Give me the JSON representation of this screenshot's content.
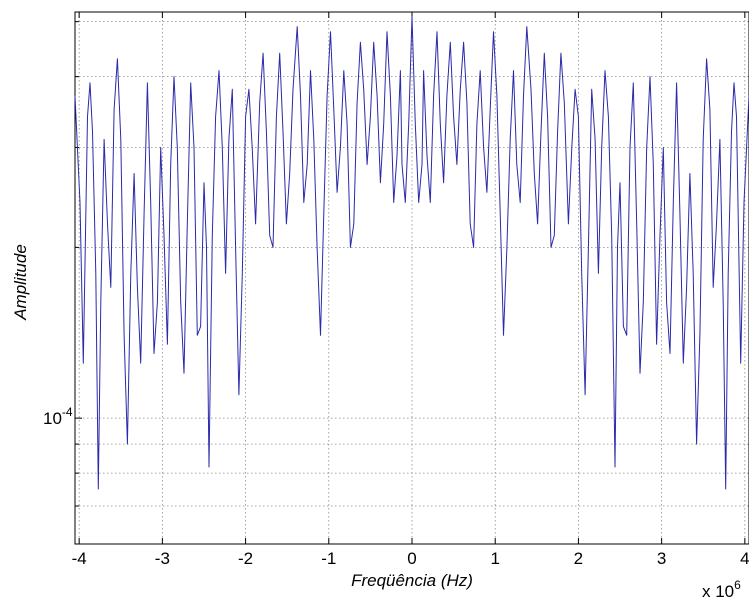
{
  "chart_data": {
    "type": "line",
    "title": "",
    "xlabel": "Freqüência (Hz)",
    "ylabel": "Amplitude",
    "x_exponent_base": "x 10",
    "x_exponent_power": "6",
    "xlim": [
      -4.05,
      4.05
    ],
    "x_ticks": [
      -4,
      -3,
      -2,
      -1,
      0,
      1,
      2,
      3,
      4
    ],
    "x_tick_labels": [
      "-4",
      "-3",
      "-2",
      "-1",
      "0",
      "1",
      "2",
      "3",
      "4"
    ],
    "y_scale": "log",
    "ylim": [
      6e-05,
      0.00052
    ],
    "y_tick_labels": [
      {
        "value": 0.0001,
        "base": "10",
        "power": "-4"
      }
    ],
    "grid": true,
    "line_color": "#2a2aaa",
    "series": [
      {
        "values": [
          [
            -4.05,
            0.00037
          ],
          [
            -3.99,
            0.00024
          ],
          [
            -3.95,
            0.000125
          ],
          [
            -3.9,
            0.00034
          ],
          [
            -3.87,
            0.00039
          ],
          [
            -3.84,
            0.00032
          ],
          [
            -3.8,
            0.00018
          ],
          [
            -3.77,
            7.5e-05
          ],
          [
            -3.74,
            0.00016
          ],
          [
            -3.7,
            0.00031
          ],
          [
            -3.66,
            0.00022
          ],
          [
            -3.62,
            0.00017
          ],
          [
            -3.58,
            0.00035
          ],
          [
            -3.54,
            0.00043
          ],
          [
            -3.5,
            0.00031
          ],
          [
            -3.46,
            0.00014
          ],
          [
            -3.42,
            9e-05
          ],
          [
            -3.38,
            0.00018
          ],
          [
            -3.34,
            0.00027
          ],
          [
            -3.3,
            0.00017
          ],
          [
            -3.26,
            0.000125
          ],
          [
            -3.22,
            0.00023
          ],
          [
            -3.18,
            0.00039
          ],
          [
            -3.14,
            0.00024
          ],
          [
            -3.1,
            0.00013
          ],
          [
            -3.06,
            0.00016
          ],
          [
            -3.02,
            0.0003
          ],
          [
            -2.98,
            0.00021
          ],
          [
            -2.94,
            0.000135
          ],
          [
            -2.9,
            0.00028
          ],
          [
            -2.86,
            0.0004
          ],
          [
            -2.82,
            0.0003
          ],
          [
            -2.78,
            0.00016
          ],
          [
            -2.74,
            0.00012
          ],
          [
            -2.7,
            0.00022
          ],
          [
            -2.66,
            0.00039
          ],
          [
            -2.62,
            0.0003
          ],
          [
            -2.58,
            0.00014
          ],
          [
            -2.54,
            0.000145
          ],
          [
            -2.5,
            0.00026
          ],
          [
            -2.47,
            0.0002
          ],
          [
            -2.44,
            8.2e-05
          ],
          [
            -2.4,
            0.00021
          ],
          [
            -2.36,
            0.00034
          ],
          [
            -2.32,
            0.00041
          ],
          [
            -2.28,
            0.0003
          ],
          [
            -2.24,
            0.00018
          ],
          [
            -2.2,
            0.00031
          ],
          [
            -2.16,
            0.00038
          ],
          [
            -2.12,
            0.0002
          ],
          [
            -2.08,
            0.00011
          ],
          [
            -2.04,
            0.00018
          ],
          [
            -2.0,
            0.00034
          ],
          [
            -1.96,
            0.00038
          ],
          [
            -1.92,
            0.0003
          ],
          [
            -1.88,
            0.00022
          ],
          [
            -1.83,
            0.00036
          ],
          [
            -1.79,
            0.00044
          ],
          [
            -1.75,
            0.00032
          ],
          [
            -1.71,
            0.00021
          ],
          [
            -1.67,
            0.0002
          ],
          [
            -1.63,
            0.00034
          ],
          [
            -1.59,
            0.00044
          ],
          [
            -1.55,
            0.00032
          ],
          [
            -1.51,
            0.00022
          ],
          [
            -1.47,
            0.00027
          ],
          [
            -1.43,
            0.00038
          ],
          [
            -1.38,
            0.00049
          ],
          [
            -1.34,
            0.00037
          ],
          [
            -1.3,
            0.00024
          ],
          [
            -1.26,
            0.00028
          ],
          [
            -1.22,
            0.00041
          ],
          [
            -1.18,
            0.00031
          ],
          [
            -1.14,
            0.0002
          ],
          [
            -1.1,
            0.00014
          ],
          [
            -1.06,
            0.00023
          ],
          [
            -1.02,
            0.00037
          ],
          [
            -0.98,
            0.00048
          ],
          [
            -0.94,
            0.00035
          ],
          [
            -0.9,
            0.00025
          ],
          [
            -0.86,
            0.0003
          ],
          [
            -0.82,
            0.00041
          ],
          [
            -0.78,
            0.00033
          ],
          [
            -0.74,
            0.0002
          ],
          [
            -0.7,
            0.00022
          ],
          [
            -0.66,
            0.00036
          ],
          [
            -0.62,
            0.00046
          ],
          [
            -0.58,
            0.00038
          ],
          [
            -0.54,
            0.00028
          ],
          [
            -0.5,
            0.00034
          ],
          [
            -0.46,
            0.00046
          ],
          [
            -0.42,
            0.00037
          ],
          [
            -0.38,
            0.00026
          ],
          [
            -0.34,
            0.00033
          ],
          [
            -0.3,
            0.00048
          ],
          [
            -0.26,
            0.00037
          ],
          [
            -0.22,
            0.00024
          ],
          [
            -0.18,
            0.00029
          ],
          [
            -0.14,
            0.00041
          ],
          [
            -0.12,
            0.00028
          ],
          [
            -0.08,
            0.00024
          ],
          [
            -0.04,
            0.00033
          ],
          [
            0.0,
            0.00051
          ],
          [
            0.04,
            0.00033
          ],
          [
            0.08,
            0.00024
          ],
          [
            0.12,
            0.00028
          ],
          [
            0.14,
            0.00041
          ],
          [
            0.18,
            0.00029
          ],
          [
            0.22,
            0.00024
          ],
          [
            0.26,
            0.00037
          ],
          [
            0.3,
            0.00048
          ],
          [
            0.34,
            0.00033
          ],
          [
            0.38,
            0.00026
          ],
          [
            0.42,
            0.00037
          ],
          [
            0.46,
            0.00046
          ],
          [
            0.5,
            0.00034
          ],
          [
            0.54,
            0.00028
          ],
          [
            0.58,
            0.00038
          ],
          [
            0.62,
            0.00046
          ],
          [
            0.66,
            0.00036
          ],
          [
            0.7,
            0.00022
          ],
          [
            0.74,
            0.0002
          ],
          [
            0.78,
            0.00033
          ],
          [
            0.82,
            0.00041
          ],
          [
            0.86,
            0.0003
          ],
          [
            0.9,
            0.00025
          ],
          [
            0.94,
            0.00035
          ],
          [
            0.98,
            0.00048
          ],
          [
            1.02,
            0.00037
          ],
          [
            1.06,
            0.00023
          ],
          [
            1.1,
            0.00014
          ],
          [
            1.14,
            0.0002
          ],
          [
            1.18,
            0.00031
          ],
          [
            1.22,
            0.00041
          ],
          [
            1.26,
            0.00028
          ],
          [
            1.3,
            0.00024
          ],
          [
            1.34,
            0.00037
          ],
          [
            1.38,
            0.00049
          ],
          [
            1.43,
            0.00038
          ],
          [
            1.47,
            0.00027
          ],
          [
            1.51,
            0.00022
          ],
          [
            1.55,
            0.00032
          ],
          [
            1.59,
            0.00044
          ],
          [
            1.63,
            0.00034
          ],
          [
            1.67,
            0.0002
          ],
          [
            1.71,
            0.00021
          ],
          [
            1.75,
            0.00032
          ],
          [
            1.79,
            0.00044
          ],
          [
            1.83,
            0.00036
          ],
          [
            1.88,
            0.00022
          ],
          [
            1.92,
            0.0003
          ],
          [
            1.96,
            0.00038
          ],
          [
            2.0,
            0.00034
          ],
          [
            2.04,
            0.00018
          ],
          [
            2.08,
            0.00011
          ],
          [
            2.12,
            0.0002
          ],
          [
            2.16,
            0.00038
          ],
          [
            2.2,
            0.00031
          ],
          [
            2.24,
            0.00018
          ],
          [
            2.28,
            0.0003
          ],
          [
            2.32,
            0.00041
          ],
          [
            2.36,
            0.00034
          ],
          [
            2.4,
            0.00021
          ],
          [
            2.44,
            8.2e-05
          ],
          [
            2.47,
            0.0002
          ],
          [
            2.5,
            0.00026
          ],
          [
            2.54,
            0.000145
          ],
          [
            2.58,
            0.00014
          ],
          [
            2.62,
            0.0003
          ],
          [
            2.66,
            0.00039
          ],
          [
            2.7,
            0.00022
          ],
          [
            2.74,
            0.00012
          ],
          [
            2.78,
            0.00016
          ],
          [
            2.82,
            0.0003
          ],
          [
            2.86,
            0.0004
          ],
          [
            2.9,
            0.00028
          ],
          [
            2.94,
            0.000135
          ],
          [
            2.98,
            0.00021
          ],
          [
            3.02,
            0.0003
          ],
          [
            3.06,
            0.00016
          ],
          [
            3.1,
            0.00013
          ],
          [
            3.14,
            0.00024
          ],
          [
            3.18,
            0.00039
          ],
          [
            3.22,
            0.00023
          ],
          [
            3.26,
            0.000125
          ],
          [
            3.3,
            0.00017
          ],
          [
            3.34,
            0.00027
          ],
          [
            3.38,
            0.00018
          ],
          [
            3.42,
            9e-05
          ],
          [
            3.46,
            0.00014
          ],
          [
            3.5,
            0.00031
          ],
          [
            3.54,
            0.00043
          ],
          [
            3.58,
            0.00035
          ],
          [
            3.62,
            0.00017
          ],
          [
            3.66,
            0.00022
          ],
          [
            3.7,
            0.00031
          ],
          [
            3.74,
            0.00016
          ],
          [
            3.77,
            7.5e-05
          ],
          [
            3.8,
            0.00018
          ],
          [
            3.84,
            0.00032
          ],
          [
            3.87,
            0.00039
          ],
          [
            3.9,
            0.00034
          ],
          [
            3.95,
            0.000125
          ],
          [
            3.99,
            0.00024
          ],
          [
            4.05,
            0.00037
          ]
        ]
      }
    ]
  }
}
